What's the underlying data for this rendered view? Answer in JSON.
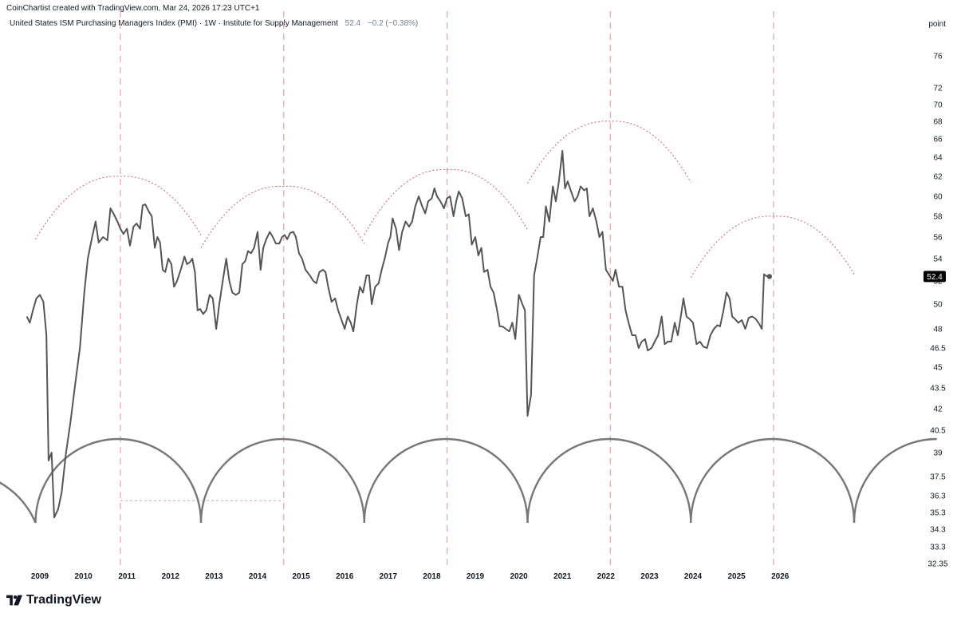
{
  "credit": "CoinChartist created with TradingView.com, Mar 24, 2026 17:23 UTC+1",
  "legend": {
    "title": "United States ISM Purchasing Managers Index (PMI) · 1W · Institute for Supply Management",
    "value": "52.4",
    "change": "−0.2 (−0.38%)"
  },
  "axis_unit": "point",
  "brand": {
    "name": "TradingView",
    "icon": "tradingview-logo-icon"
  },
  "colors": {
    "line": "#555555",
    "cycle_marker": "#e8a0a8",
    "arc": "#d06070",
    "cycle_curve": "#777777",
    "last_value_bg": "#000000"
  },
  "chart_data": {
    "type": "line",
    "series": [
      {
        "values": [
          [
            2008.7,
            49.0
          ],
          [
            2008.77,
            48.5
          ],
          [
            2008.84,
            49.5
          ],
          [
            2008.92,
            50.5
          ],
          [
            2009.0,
            50.8
          ],
          [
            2009.08,
            50.2
          ],
          [
            2009.15,
            47.5
          ],
          [
            2009.2,
            38.5
          ],
          [
            2009.27,
            39.0
          ],
          [
            2009.33,
            35.0
          ],
          [
            2009.42,
            35.5
          ],
          [
            2009.5,
            36.5
          ],
          [
            2009.6,
            39.0
          ],
          [
            2009.7,
            41.0
          ],
          [
            2009.82,
            44.0
          ],
          [
            2009.92,
            46.5
          ],
          [
            2010.02,
            51.0
          ],
          [
            2010.1,
            54.0
          ],
          [
            2010.2,
            56.0
          ],
          [
            2010.28,
            57.5
          ],
          [
            2010.35,
            55.5
          ],
          [
            2010.45,
            56.0
          ],
          [
            2010.55,
            55.7
          ],
          [
            2010.62,
            58.8
          ],
          [
            2010.7,
            58.2
          ],
          [
            2010.78,
            57.5
          ],
          [
            2010.85,
            56.8
          ],
          [
            2010.92,
            56.3
          ],
          [
            2011.0,
            56.8
          ],
          [
            2011.07,
            55.2
          ],
          [
            2011.15,
            57.0
          ],
          [
            2011.22,
            57.3
          ],
          [
            2011.3,
            56.8
          ],
          [
            2011.36,
            59.1
          ],
          [
            2011.42,
            59.2
          ],
          [
            2011.5,
            58.5
          ],
          [
            2011.57,
            58.0
          ],
          [
            2011.64,
            55.0
          ],
          [
            2011.7,
            56.0
          ],
          [
            2011.76,
            55.5
          ],
          [
            2011.82,
            53.0
          ],
          [
            2011.88,
            52.8
          ],
          [
            2011.95,
            54.0
          ],
          [
            2012.02,
            53.5
          ],
          [
            2012.08,
            51.5
          ],
          [
            2012.15,
            52.0
          ],
          [
            2012.25,
            53.2
          ],
          [
            2012.32,
            54.2
          ],
          [
            2012.38,
            53.5
          ],
          [
            2012.45,
            53.7
          ],
          [
            2012.5,
            54.0
          ],
          [
            2012.56,
            52.8
          ],
          [
            2012.62,
            49.5
          ],
          [
            2012.68,
            49.6
          ],
          [
            2012.75,
            49.2
          ],
          [
            2012.82,
            49.5
          ],
          [
            2012.9,
            50.8
          ],
          [
            2012.97,
            50.5
          ],
          [
            2013.05,
            48.0
          ],
          [
            2013.12,
            50.0
          ],
          [
            2013.2,
            52.0
          ],
          [
            2013.28,
            54.0
          ],
          [
            2013.35,
            52.0
          ],
          [
            2013.42,
            51.0
          ],
          [
            2013.5,
            50.8
          ],
          [
            2013.58,
            51.0
          ],
          [
            2013.65,
            53.5
          ],
          [
            2013.72,
            53.8
          ],
          [
            2013.78,
            54.7
          ],
          [
            2013.85,
            54.5
          ],
          [
            2013.92,
            55.0
          ],
          [
            2014.0,
            56.5
          ],
          [
            2014.07,
            53.0
          ],
          [
            2014.13,
            55.0
          ],
          [
            2014.2,
            55.8
          ],
          [
            2014.28,
            56.5
          ],
          [
            2014.35,
            56.0
          ],
          [
            2014.42,
            55.4
          ],
          [
            2014.5,
            55.4
          ],
          [
            2014.56,
            56.0
          ],
          [
            2014.62,
            56.2
          ],
          [
            2014.68,
            55.8
          ],
          [
            2014.75,
            56.4
          ],
          [
            2014.82,
            56.5
          ],
          [
            2014.88,
            56.0
          ],
          [
            2014.95,
            54.5
          ],
          [
            2015.02,
            54.0
          ],
          [
            2015.1,
            53.0
          ],
          [
            2015.2,
            52.5
          ],
          [
            2015.28,
            52.0
          ],
          [
            2015.35,
            51.8
          ],
          [
            2015.42,
            52.8
          ],
          [
            2015.5,
            53.0
          ],
          [
            2015.56,
            52.8
          ],
          [
            2015.62,
            51.5
          ],
          [
            2015.7,
            50.2
          ],
          [
            2015.78,
            50.5
          ],
          [
            2015.85,
            49.5
          ],
          [
            2015.92,
            48.8
          ],
          [
            2016.0,
            48.0
          ],
          [
            2016.07,
            49.0
          ],
          [
            2016.14,
            48.5
          ],
          [
            2016.2,
            47.8
          ],
          [
            2016.28,
            50.0
          ],
          [
            2016.35,
            51.5
          ],
          [
            2016.42,
            51.0
          ],
          [
            2016.5,
            52.5
          ],
          [
            2016.56,
            52.5
          ],
          [
            2016.62,
            50.0
          ],
          [
            2016.7,
            51.5
          ],
          [
            2016.78,
            51.8
          ],
          [
            2016.85,
            53.0
          ],
          [
            2016.92,
            54.0
          ],
          [
            2017.0,
            55.5
          ],
          [
            2017.05,
            56.0
          ],
          [
            2017.1,
            57.8
          ],
          [
            2017.18,
            56.8
          ],
          [
            2017.25,
            54.8
          ],
          [
            2017.32,
            56.5
          ],
          [
            2017.4,
            57.5
          ],
          [
            2017.48,
            57.0
          ],
          [
            2017.55,
            57.5
          ],
          [
            2017.62,
            59.0
          ],
          [
            2017.7,
            60.0
          ],
          [
            2017.78,
            59.0
          ],
          [
            2017.85,
            58.3
          ],
          [
            2017.92,
            59.5
          ],
          [
            2018.0,
            59.8
          ],
          [
            2018.06,
            60.8
          ],
          [
            2018.12,
            60.0
          ],
          [
            2018.2,
            59.5
          ],
          [
            2018.28,
            58.8
          ],
          [
            2018.35,
            59.8
          ],
          [
            2018.42,
            60.0
          ],
          [
            2018.5,
            58.0
          ],
          [
            2018.56,
            59.5
          ],
          [
            2018.62,
            60.5
          ],
          [
            2018.7,
            59.8
          ],
          [
            2018.78,
            58.0
          ],
          [
            2018.85,
            58.2
          ],
          [
            2018.92,
            55.3
          ],
          [
            2019.0,
            56.0
          ],
          [
            2019.07,
            54.3
          ],
          [
            2019.14,
            55.0
          ],
          [
            2019.2,
            52.8
          ],
          [
            2019.28,
            53.0
          ],
          [
            2019.35,
            51.5
          ],
          [
            2019.42,
            51.0
          ],
          [
            2019.5,
            49.5
          ],
          [
            2019.56,
            48.2
          ],
          [
            2019.62,
            48.2
          ],
          [
            2019.7,
            48.0
          ],
          [
            2019.78,
            47.8
          ],
          [
            2019.85,
            48.5
          ],
          [
            2019.92,
            47.2
          ],
          [
            2020.0,
            50.8
          ],
          [
            2020.07,
            50.1
          ],
          [
            2020.14,
            49.5
          ],
          [
            2020.2,
            41.5
          ],
          [
            2020.28,
            43.0
          ],
          [
            2020.35,
            52.5
          ],
          [
            2020.42,
            54.0
          ],
          [
            2020.5,
            56.0
          ],
          [
            2020.56,
            56.0
          ],
          [
            2020.62,
            59.0
          ],
          [
            2020.7,
            57.5
          ],
          [
            2020.78,
            61.0
          ],
          [
            2020.85,
            59.5
          ],
          [
            2020.92,
            61.5
          ],
          [
            2021.0,
            64.7
          ],
          [
            2021.06,
            60.8
          ],
          [
            2021.12,
            61.5
          ],
          [
            2021.2,
            60.5
          ],
          [
            2021.28,
            59.5
          ],
          [
            2021.35,
            60.0
          ],
          [
            2021.42,
            61.0
          ],
          [
            2021.5,
            60.6
          ],
          [
            2021.56,
            60.8
          ],
          [
            2021.62,
            58.0
          ],
          [
            2021.7,
            58.8
          ],
          [
            2021.78,
            57.5
          ],
          [
            2021.85,
            56.0
          ],
          [
            2021.92,
            56.5
          ],
          [
            2022.0,
            53.0
          ],
          [
            2022.08,
            52.5
          ],
          [
            2022.16,
            52.0
          ],
          [
            2022.22,
            53.0
          ],
          [
            2022.3,
            51.5
          ],
          [
            2022.38,
            51.5
          ],
          [
            2022.45,
            49.5
          ],
          [
            2022.52,
            48.5
          ],
          [
            2022.6,
            47.5
          ],
          [
            2022.68,
            47.5
          ],
          [
            2022.75,
            46.5
          ],
          [
            2022.82,
            47.0
          ],
          [
            2022.9,
            47.2
          ],
          [
            2022.96,
            46.3
          ],
          [
            2023.05,
            46.5
          ],
          [
            2023.12,
            47.0
          ],
          [
            2023.2,
            47.5
          ],
          [
            2023.28,
            49.0
          ],
          [
            2023.35,
            46.8
          ],
          [
            2023.42,
            47.0
          ],
          [
            2023.5,
            47.0
          ],
          [
            2023.58,
            48.5
          ],
          [
            2023.65,
            47.5
          ],
          [
            2023.72,
            49.0
          ],
          [
            2023.78,
            50.5
          ],
          [
            2023.85,
            49.0
          ],
          [
            2023.92,
            48.8
          ],
          [
            2024.0,
            48.5
          ],
          [
            2024.08,
            46.8
          ],
          [
            2024.16,
            47.0
          ],
          [
            2024.24,
            46.6
          ],
          [
            2024.32,
            46.5
          ],
          [
            2024.4,
            47.5
          ],
          [
            2024.48,
            48.0
          ],
          [
            2024.56,
            48.3
          ],
          [
            2024.62,
            48.2
          ],
          [
            2024.7,
            49.5
          ],
          [
            2024.77,
            51.0
          ],
          [
            2024.84,
            50.5
          ],
          [
            2024.9,
            49.0
          ],
          [
            2024.96,
            48.8
          ],
          [
            2025.04,
            48.5
          ],
          [
            2025.12,
            48.7
          ],
          [
            2025.2,
            48.0
          ],
          [
            2025.28,
            48.9
          ],
          [
            2025.36,
            49.0
          ],
          [
            2025.44,
            48.8
          ],
          [
            2025.52,
            48.4
          ],
          [
            2025.58,
            48.0
          ],
          [
            2025.63,
            52.6
          ],
          [
            2025.7,
            52.4
          ]
        ]
      }
    ],
    "last_value": 52.4,
    "y_ticks": [
      "76",
      "72",
      "70",
      "68",
      "66",
      "64",
      "62",
      "60",
      "58",
      "56",
      "54",
      "52",
      "50",
      "48",
      "46.5",
      "45",
      "43.5",
      "42",
      "40.5",
      "39",
      "37.5",
      "36.3",
      "35.3",
      "34.3",
      "33.3",
      "32.35"
    ],
    "x_ticks": [
      "2009",
      "2010",
      "2011",
      "2012",
      "2013",
      "2014",
      "2015",
      "2016",
      "2017",
      "2018",
      "2019",
      "2020",
      "2021",
      "2022",
      "2023",
      "2024",
      "2025",
      "2026"
    ],
    "cycle_markers": [
      2010.85,
      2014.6,
      2018.35,
      2022.1,
      2025.85
    ],
    "cycle_troughs": [
      2008.9,
      2012.7,
      2016.45,
      2020.2,
      2023.95,
      2027.7
    ],
    "projection_arcs": [
      {
        "start": [
          2008.9,
          55.8
        ],
        "peak": [
          2010.85,
          62.0
        ],
        "end": [
          2012.7,
          56.2
        ]
      },
      {
        "start": [
          2012.7,
          55.0
        ],
        "peak": [
          2014.6,
          61.0
        ],
        "end": [
          2016.45,
          55.4
        ]
      },
      {
        "start": [
          2016.45,
          56.2
        ],
        "peak": [
          2018.35,
          62.7
        ],
        "end": [
          2020.2,
          56.7
        ]
      },
      {
        "start": [
          2020.2,
          61.3
        ],
        "peak": [
          2022.1,
          68.0
        ],
        "end": [
          2023.95,
          61.4
        ]
      },
      {
        "start": [
          2023.95,
          52.3
        ],
        "peak": [
          2025.85,
          58.0
        ],
        "end": [
          2027.7,
          52.6
        ]
      }
    ],
    "horizontal_level": {
      "from": 2010.85,
      "to": 2014.6,
      "value": 36.0
    },
    "ylim": [
      32.35,
      76
    ],
    "grid": false
  }
}
